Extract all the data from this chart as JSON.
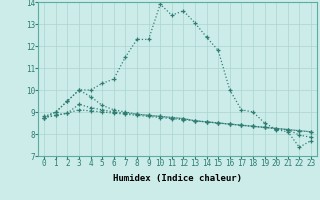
{
  "xlabel": "Humidex (Indice chaleur)",
  "bg_color": "#ccecea",
  "grid_color": "#aad4d0",
  "line_color": "#2e7d72",
  "x": [
    0,
    1,
    2,
    3,
    4,
    5,
    6,
    7,
    8,
    9,
    10,
    11,
    12,
    13,
    14,
    15,
    16,
    17,
    18,
    19,
    20,
    21,
    22,
    23
  ],
  "series1": [
    8.8,
    9.0,
    9.5,
    10.0,
    10.0,
    10.3,
    10.5,
    11.5,
    12.3,
    12.3,
    13.9,
    13.4,
    13.6,
    13.05,
    12.4,
    11.8,
    10.0,
    9.1,
    9.0,
    8.5,
    8.2,
    8.1,
    7.4,
    7.7
  ],
  "series2": [
    8.75,
    9.0,
    9.5,
    10.0,
    9.7,
    9.3,
    9.1,
    9.0,
    8.9,
    8.85,
    8.8,
    8.75,
    8.7,
    8.6,
    8.55,
    8.5,
    8.45,
    8.4,
    8.35,
    8.3,
    8.25,
    8.2,
    8.15,
    8.1
  ],
  "series3": [
    8.75,
    8.85,
    8.95,
    9.35,
    9.2,
    9.1,
    9.0,
    8.95,
    8.9,
    8.85,
    8.8,
    8.75,
    8.7,
    8.6,
    8.55,
    8.5,
    8.45,
    8.4,
    8.35,
    8.3,
    8.25,
    8.2,
    7.95,
    7.85
  ],
  "series4": [
    8.75,
    8.85,
    8.95,
    9.1,
    9.05,
    9.0,
    8.95,
    8.9,
    8.85,
    8.8,
    8.75,
    8.7,
    8.65,
    8.6,
    8.55,
    8.5,
    8.45,
    8.4,
    8.35,
    8.3,
    8.25,
    8.2,
    8.15,
    8.1
  ],
  "ylim": [
    7,
    14
  ],
  "yticks": [
    7,
    8,
    9,
    10,
    11,
    12,
    13,
    14
  ],
  "xticks": [
    0,
    1,
    2,
    3,
    4,
    5,
    6,
    7,
    8,
    9,
    10,
    11,
    12,
    13,
    14,
    15,
    16,
    17,
    18,
    19,
    20,
    21,
    22,
    23
  ],
  "label_fontsize": 6.5,
  "tick_fontsize": 5.5
}
